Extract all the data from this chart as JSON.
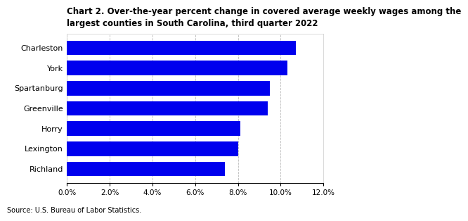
{
  "title": "Chart 2. Over-the-year percent change in covered average weekly wages among the\nlargest counties in South Carolina, third quarter 2022",
  "categories": [
    "Richland",
    "Lexington",
    "Horry",
    "Greenville",
    "Spartanburg",
    "York",
    "Charleston"
  ],
  "values": [
    0.074,
    0.08,
    0.081,
    0.094,
    0.095,
    0.103,
    0.107
  ],
  "bar_color": "#0000EE",
  "xlim": [
    0,
    0.12
  ],
  "xticks": [
    0.0,
    0.02,
    0.04,
    0.06,
    0.08,
    0.1,
    0.12
  ],
  "xtick_labels": [
    "0.0%",
    "2.0%",
    "4.0%",
    "6.0%",
    "8.0%",
    "10.0%",
    "12.0%"
  ],
  "source": "Source: U.S. Bureau of Labor Statistics.",
  "background_color": "#ffffff",
  "grid_color": "#bbbbbb",
  "title_fontsize": 8.5,
  "tick_fontsize": 7.5,
  "label_fontsize": 8.0,
  "source_fontsize": 7.0,
  "bar_height": 0.72
}
